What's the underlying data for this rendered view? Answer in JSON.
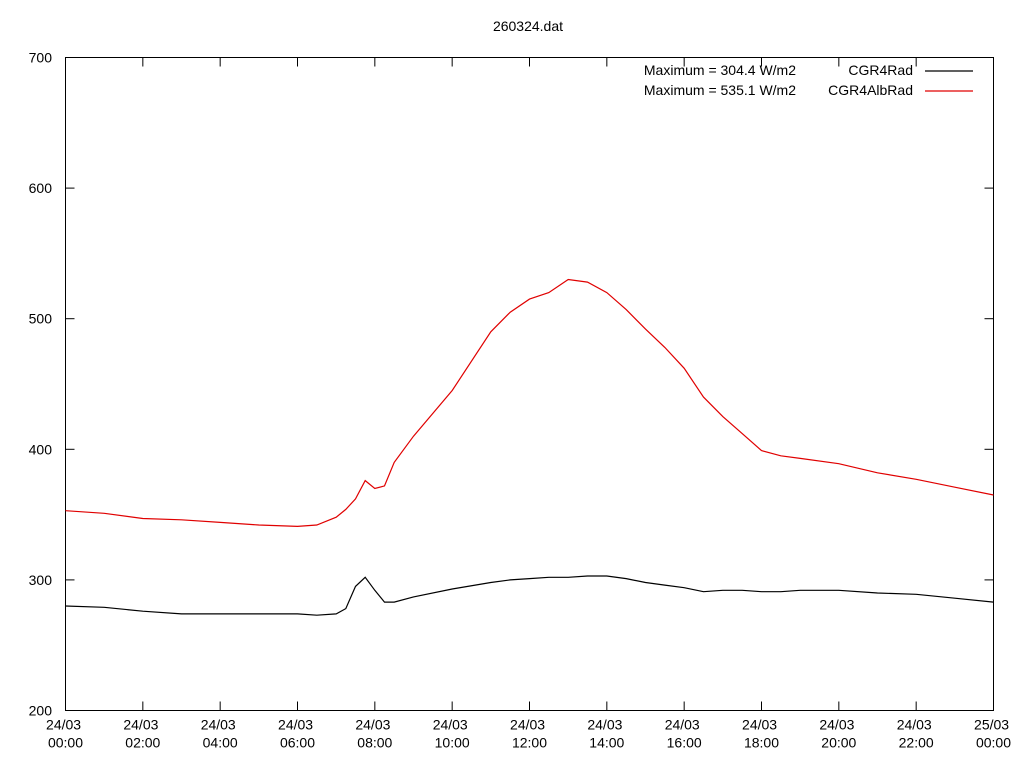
{
  "chart_data": {
    "type": "line",
    "title": "260324.dat",
    "annotations": [
      "Maximum = 304.4 W/m2",
      "Maximum = 535.1 W/m2"
    ],
    "x": [
      "24/03 00:00",
      "24/03 01:00",
      "24/03 02:00",
      "24/03 03:00",
      "24/03 04:00",
      "24/03 05:00",
      "24/03 06:00",
      "24/03 06:30",
      "24/03 07:00",
      "24/03 07:15",
      "24/03 07:30",
      "24/03 07:45",
      "24/03 08:00",
      "24/03 08:15",
      "24/03 08:30",
      "24/03 09:00",
      "24/03 10:00",
      "24/03 11:00",
      "24/03 11:30",
      "24/03 12:00",
      "24/03 12:30",
      "24/03 13:00",
      "24/03 13:30",
      "24/03 14:00",
      "24/03 14:30",
      "24/03 15:00",
      "24/03 15:30",
      "24/03 16:00",
      "24/03 16:30",
      "24/03 17:00",
      "24/03 17:30",
      "24/03 18:00",
      "24/03 18:30",
      "24/03 19:00",
      "24/03 20:00",
      "24/03 21:00",
      "24/03 22:00",
      "24/03 23:00",
      "25/03 00:00"
    ],
    "series": [
      {
        "name": "CGR4Rad",
        "color": "#000000",
        "values": [
          280,
          279,
          276,
          274,
          274,
          274,
          274,
          273,
          274,
          278,
          295,
          302,
          292,
          283,
          283,
          287,
          293,
          298,
          300,
          301,
          302,
          302,
          303,
          303,
          301,
          298,
          296,
          294,
          291,
          292,
          292,
          291,
          291,
          292,
          292,
          290,
          289,
          286,
          283
        ]
      },
      {
        "name": "CGR4AlbRad",
        "color": "#e00000",
        "values": [
          353,
          351,
          347,
          346,
          344,
          342,
          341,
          342,
          348,
          354,
          362,
          376,
          370,
          372,
          390,
          410,
          445,
          490,
          505,
          515,
          520,
          530,
          528,
          520,
          507,
          492,
          478,
          462,
          440,
          425,
          412,
          399,
          395,
          393,
          389,
          382,
          377,
          371,
          365
        ]
      }
    ],
    "xlim": [
      "24/03 00:00",
      "25/03 00:00"
    ],
    "xticks": [
      "24/03 00:00",
      "24/03 02:00",
      "24/03 04:00",
      "24/03 06:00",
      "24/03 08:00",
      "24/03 10:00",
      "24/03 12:00",
      "24/03 14:00",
      "24/03 16:00",
      "24/03 18:00",
      "24/03 20:00",
      "24/03 22:00",
      "25/03 00:00"
    ],
    "ylim": [
      200,
      700
    ],
    "yticks": [
      200,
      300,
      400,
      500,
      600,
      700
    ],
    "grid": false
  }
}
